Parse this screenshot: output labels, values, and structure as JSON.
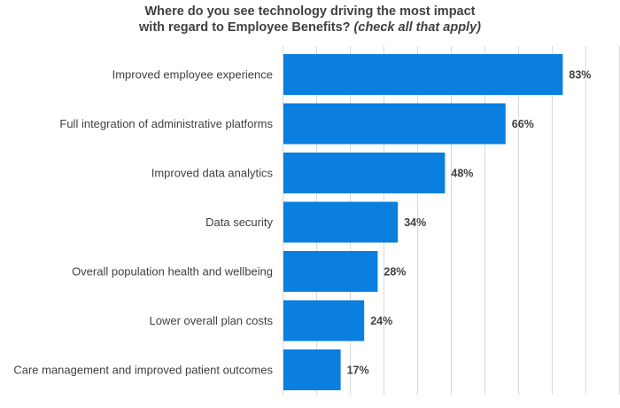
{
  "chart_data": {
    "type": "bar",
    "orientation": "horizontal",
    "title_line1": "Where do you see technology driving the most impact",
    "title_line2": "with regard to Employee Benefits?",
    "title_line2_italic": "(check all that apply)",
    "categories": [
      "Improved employee experience",
      "Full integration of administrative platforms",
      "Improved data analytics",
      "Data security",
      "Overall population health and wellbeing",
      "Lower overall plan costs",
      "Care management and improved patient outcomes"
    ],
    "values": [
      83,
      66,
      48,
      34,
      28,
      24,
      17
    ],
    "value_labels": [
      "83%",
      "66%",
      "48%",
      "34%",
      "28%",
      "24%",
      "17%"
    ],
    "xlim": [
      0,
      100
    ],
    "grid": true,
    "colors": {
      "bar": "#0a7fe0",
      "text": "#404040",
      "grid": "#d9d9d9"
    }
  }
}
